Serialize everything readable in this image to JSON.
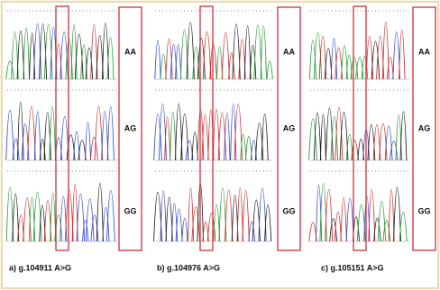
{
  "panels": [
    {
      "caption": "a) g.104911 A>G",
      "genotypes": [
        "AA",
        "AG",
        "GG"
      ]
    },
    {
      "caption": "b) g.104976 A>G",
      "genotypes": [
        "AA",
        "AG",
        "GG"
      ]
    },
    {
      "caption": "c) g.105151 A>G",
      "genotypes": [
        "AA",
        "AG",
        "GG"
      ]
    }
  ]
}
